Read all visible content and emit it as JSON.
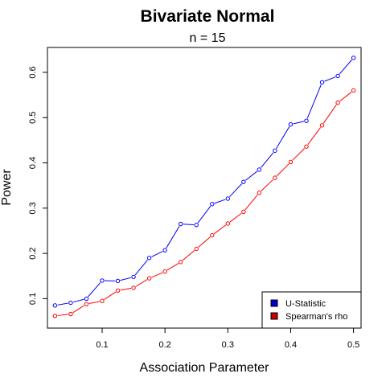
{
  "chart_data": {
    "type": "line",
    "title": "Bivariate Normal",
    "subtitle": "n = 15",
    "xlabel": "Association Parameter",
    "ylabel": "Power",
    "xlim": [
      0.013,
      0.512
    ],
    "ylim": [
      0.035,
      0.655
    ],
    "xticks": [
      0.1,
      0.2,
      0.3,
      0.4,
      0.5
    ],
    "xtick_labels": [
      "0.1",
      "0.2",
      "0.3",
      "0.4",
      "0.5"
    ],
    "yticks": [
      0.1,
      0.2,
      0.3,
      0.4,
      0.5,
      0.6
    ],
    "ytick_labels": [
      "0.1",
      "0.2",
      "0.3",
      "0.4",
      "0.5",
      "0.6"
    ],
    "grid": false,
    "legend_position": "bottom-right",
    "x": [
      0.025,
      0.05,
      0.075,
      0.1,
      0.125,
      0.15,
      0.175,
      0.2,
      0.225,
      0.25,
      0.275,
      0.3,
      0.325,
      0.35,
      0.375,
      0.4,
      0.425,
      0.45,
      0.475,
      0.5
    ],
    "series": [
      {
        "name": "U-Statistic",
        "color": "#0000ff",
        "values": [
          0.085,
          0.091,
          0.1,
          0.14,
          0.139,
          0.148,
          0.19,
          0.207,
          0.265,
          0.263,
          0.309,
          0.321,
          0.358,
          0.385,
          0.427,
          0.485,
          0.493,
          0.578,
          0.592,
          0.632
        ]
      },
      {
        "name": "Spearman's rho",
        "color": "#ff0000",
        "values": [
          0.062,
          0.066,
          0.088,
          0.095,
          0.118,
          0.124,
          0.145,
          0.16,
          0.181,
          0.21,
          0.24,
          0.266,
          0.292,
          0.334,
          0.367,
          0.402,
          0.436,
          0.483,
          0.533,
          0.56
        ]
      }
    ],
    "legend_fill": {
      "U-Statistic": "#0000cc",
      "Spearman's rho": "#cc0000"
    }
  }
}
